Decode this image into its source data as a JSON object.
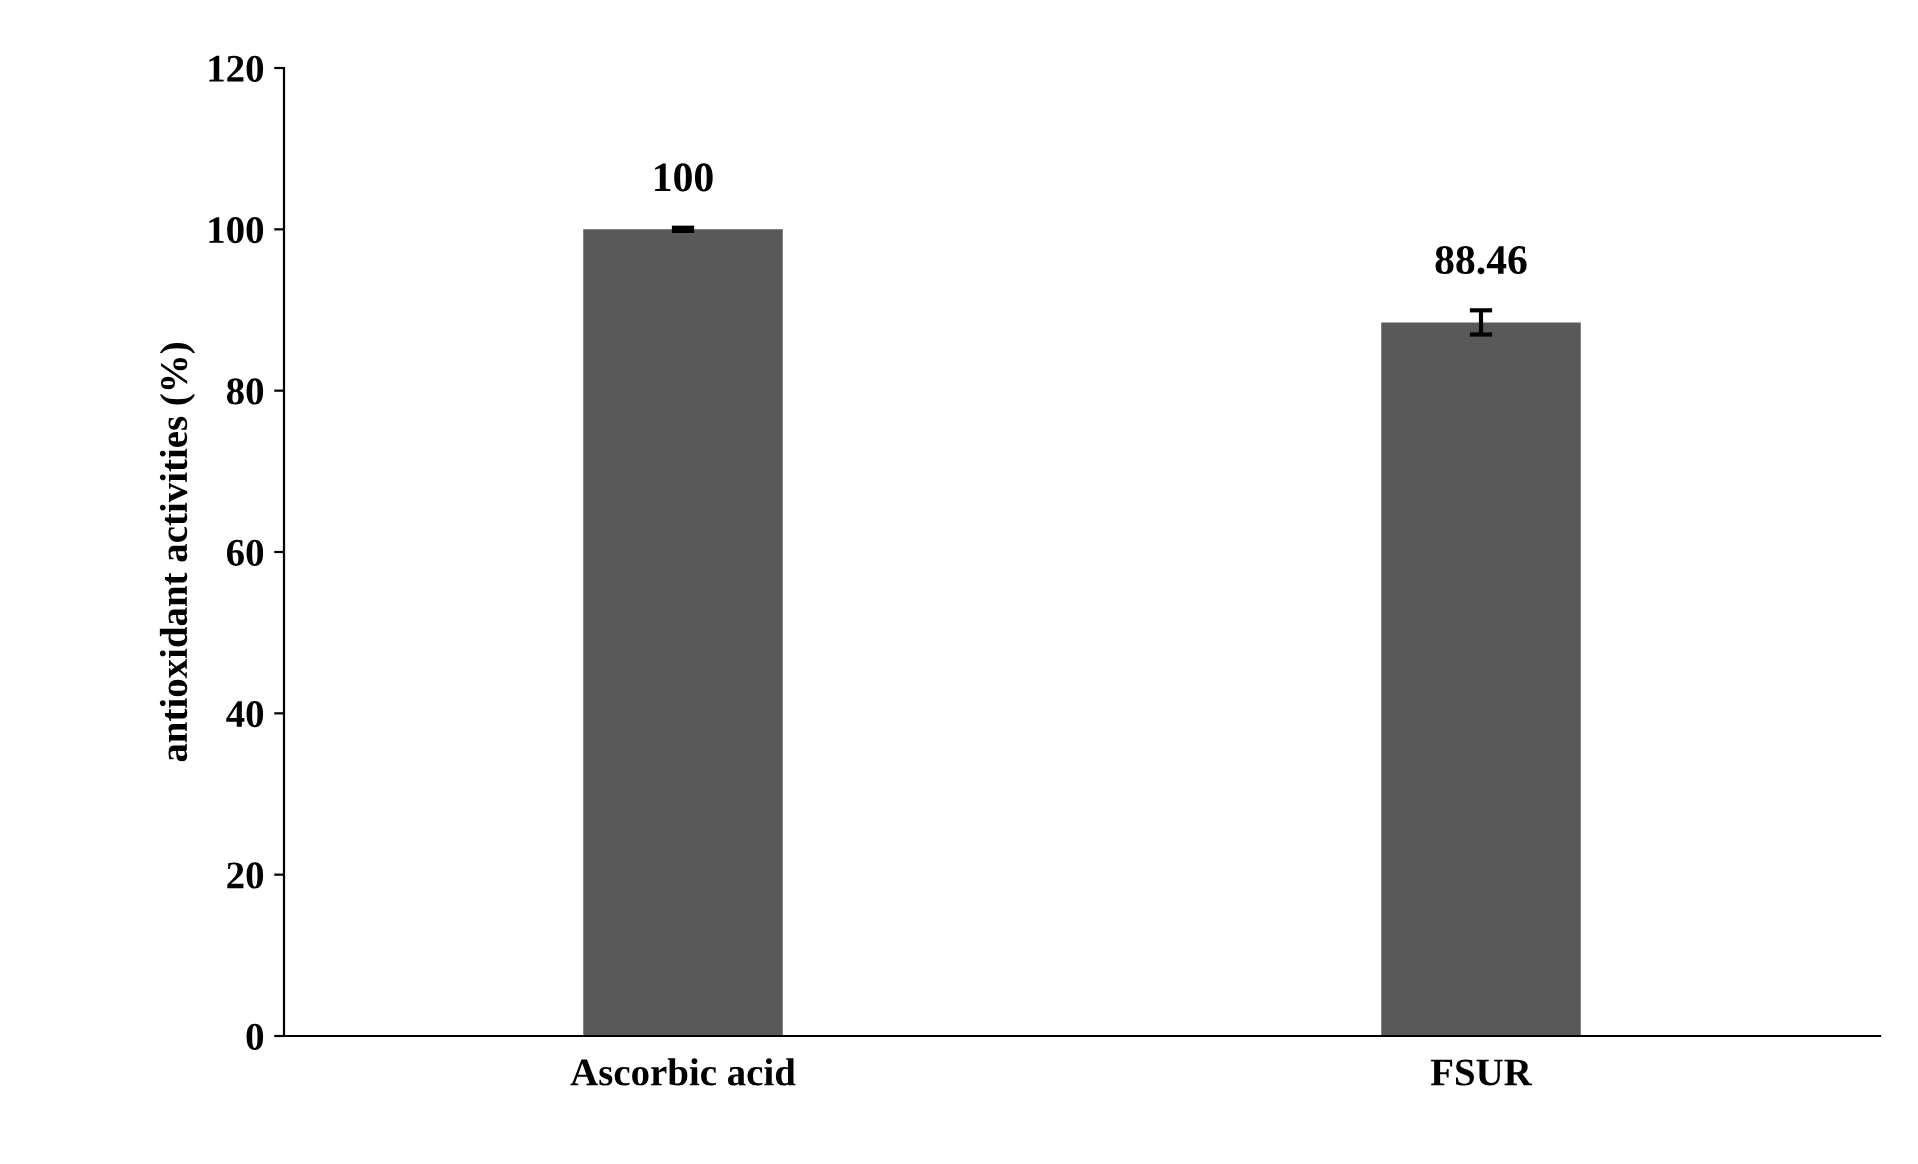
{
  "chart_data": {
    "type": "bar",
    "ylabel": "antioxidant activities (%)",
    "categories": [
      "Ascorbic acid",
      "FSUR"
    ],
    "values": [
      100,
      88.46
    ],
    "errors": [
      0.2,
      1.5
    ],
    "color": "#595959",
    "value_labels": [
      "100",
      "88.46"
    ],
    "ylim": [
      0,
      120
    ],
    "yticks": [
      0,
      20,
      40,
      60,
      80,
      100,
      120
    ],
    "grid": false
  }
}
